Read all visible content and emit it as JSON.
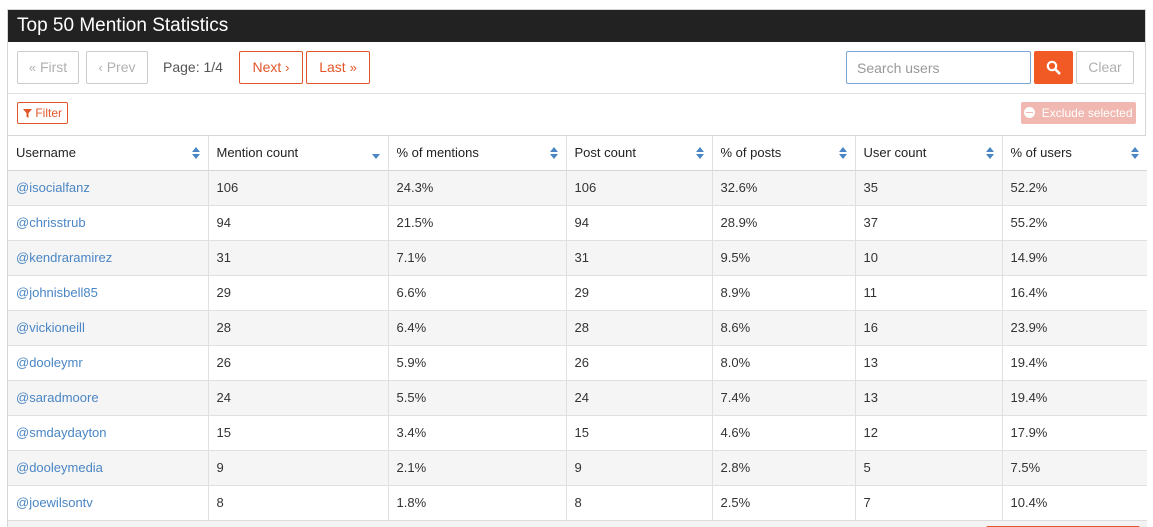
{
  "title": "Top 50 Mention Statistics",
  "pagination": {
    "first_label": "First",
    "prev_label": "Prev",
    "page_info": "Page: 1/4",
    "next_label": "Next",
    "last_label": "Last"
  },
  "search": {
    "placeholder": "Search users",
    "value": "",
    "clear_label": "Clear"
  },
  "filter_label": "Filter",
  "exclude_label": "Exclude selected",
  "colors": {
    "accent": "#f15a24",
    "link": "#4a86c5",
    "titlebar": "#222222"
  },
  "columns": [
    "Username",
    "Mention count",
    "% of mentions",
    "Post count",
    "% of posts",
    "User count",
    "% of users"
  ],
  "sort": {
    "active_column": "Mention count",
    "direction": "desc"
  },
  "rows": [
    [
      "@isocialfanz",
      "106",
      "24.3%",
      "106",
      "32.6%",
      "35",
      "52.2%"
    ],
    [
      "@chrisstrub",
      "94",
      "21.5%",
      "94",
      "28.9%",
      "37",
      "55.2%"
    ],
    [
      "@kendraramirez",
      "31",
      "7.1%",
      "31",
      "9.5%",
      "10",
      "14.9%"
    ],
    [
      "@johnisbell85",
      "29",
      "6.6%",
      "29",
      "8.9%",
      "11",
      "16.4%"
    ],
    [
      "@vickioneill",
      "28",
      "6.4%",
      "28",
      "8.6%",
      "16",
      "23.9%"
    ],
    [
      "@dooleymr",
      "26",
      "5.9%",
      "26",
      "8.0%",
      "13",
      "19.4%"
    ],
    [
      "@saradmoore",
      "24",
      "5.5%",
      "24",
      "7.4%",
      "13",
      "19.4%"
    ],
    [
      "@smdaydayton",
      "15",
      "3.4%",
      "15",
      "4.6%",
      "12",
      "17.9%"
    ],
    [
      "@dooleymedia",
      "9",
      "2.1%",
      "9",
      "2.8%",
      "5",
      "7.5%"
    ],
    [
      "@joewilsontv",
      "8",
      "1.8%",
      "8",
      "2.5%",
      "7",
      "10.4%"
    ]
  ]
}
